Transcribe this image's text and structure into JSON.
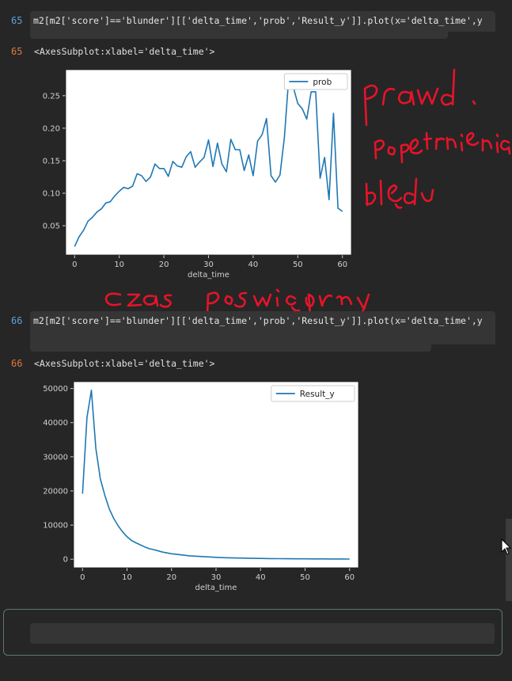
{
  "cells": [
    {
      "in_prompt": "65",
      "code": "m2[m2['score']=='blunder'][['delta_time','prob','Result_y']].plot(x='delta_time',y",
      "out_prompt": "65",
      "output_text": "<AxesSubplot:xlabel='delta_time'>"
    },
    {
      "in_prompt": "66",
      "code": "m2[m2['score']=='blunder'][['delta_time','prob','Result_y']].plot(x='delta_time',y",
      "out_prompt": "66",
      "output_text": "<AxesSubplot:xlabel='delta_time'>"
    }
  ],
  "annotations": {
    "line1": "prawd.",
    "line2": "popetnienia",
    "line3": "błędu",
    "xaxis_note": "Czas poświęcony"
  },
  "colors": {
    "series": "#1f77b4",
    "ink": "#e8132a",
    "in_prompt": "#5fa0d8",
    "out_prompt": "#e0793c"
  },
  "chart_data": [
    {
      "type": "line",
      "xlabel": "delta_time",
      "legend": [
        "prob"
      ],
      "legend_position": "top-right",
      "xlim": [
        -2,
        62
      ],
      "ylim": [
        0.005,
        0.29
      ],
      "xticks": [
        0,
        10,
        20,
        30,
        40,
        50,
        60
      ],
      "yticks": [
        0.05,
        0.1,
        0.15,
        0.2,
        0.25
      ],
      "ytick_labels": [
        "0.05",
        "0.10",
        "0.15",
        "0.20",
        "0.25"
      ],
      "series": [
        {
          "name": "prob",
          "x": [
            0,
            1,
            2,
            3,
            4,
            5,
            6,
            7,
            8,
            9,
            10,
            11,
            12,
            13,
            14,
            15,
            16,
            17,
            18,
            19,
            20,
            21,
            22,
            23,
            24,
            25,
            26,
            27,
            28,
            29,
            30,
            31,
            32,
            33,
            34,
            35,
            36,
            37,
            38,
            39,
            40,
            41,
            42,
            43,
            44,
            45,
            46,
            47,
            48,
            49,
            50,
            51,
            52,
            53,
            54,
            55,
            56,
            57,
            58,
            59,
            60
          ],
          "values": [
            0.018,
            0.033,
            0.043,
            0.057,
            0.063,
            0.071,
            0.076,
            0.085,
            0.087,
            0.096,
            0.103,
            0.109,
            0.107,
            0.111,
            0.13,
            0.127,
            0.118,
            0.125,
            0.145,
            0.138,
            0.138,
            0.126,
            0.149,
            0.142,
            0.14,
            0.156,
            0.164,
            0.14,
            0.148,
            0.155,
            0.182,
            0.141,
            0.177,
            0.145,
            0.133,
            0.183,
            0.167,
            0.167,
            0.135,
            0.159,
            0.127,
            0.18,
            0.19,
            0.215,
            0.127,
            0.117,
            0.128,
            0.186,
            0.28,
            0.263,
            0.238,
            0.23,
            0.214,
            0.256,
            0.256,
            0.123,
            0.155,
            0.09,
            0.223,
            0.077,
            0.072
          ]
        }
      ]
    },
    {
      "type": "line",
      "xlabel": "delta_time",
      "legend": [
        "Result_y"
      ],
      "legend_position": "top-right",
      "xlim": [
        -2,
        62
      ],
      "ylim": [
        -2500,
        52000
      ],
      "xticks": [
        0,
        10,
        20,
        30,
        40,
        50,
        60
      ],
      "yticks": [
        0,
        10000,
        20000,
        30000,
        40000,
        50000
      ],
      "ytick_labels": [
        "0",
        "10000",
        "20000",
        "30000",
        "40000",
        "50000"
      ],
      "series": [
        {
          "name": "Result_y",
          "x": [
            0,
            1,
            2,
            3,
            4,
            5,
            6,
            7,
            8,
            9,
            10,
            11,
            12,
            13,
            14,
            15,
            16,
            18,
            20,
            22,
            24,
            26,
            28,
            30,
            32,
            34,
            36,
            38,
            40,
            42,
            44,
            46,
            48,
            50,
            52,
            54,
            56,
            58,
            60
          ],
          "values": [
            19200,
            41500,
            49500,
            32500,
            23500,
            18800,
            14800,
            12000,
            9800,
            8000,
            6600,
            5500,
            4800,
            4200,
            3600,
            3100,
            2800,
            2100,
            1600,
            1300,
            1000,
            850,
            700,
            550,
            450,
            380,
            320,
            270,
            230,
            200,
            170,
            150,
            130,
            110,
            100,
            90,
            80,
            70,
            60
          ]
        }
      ]
    }
  ]
}
